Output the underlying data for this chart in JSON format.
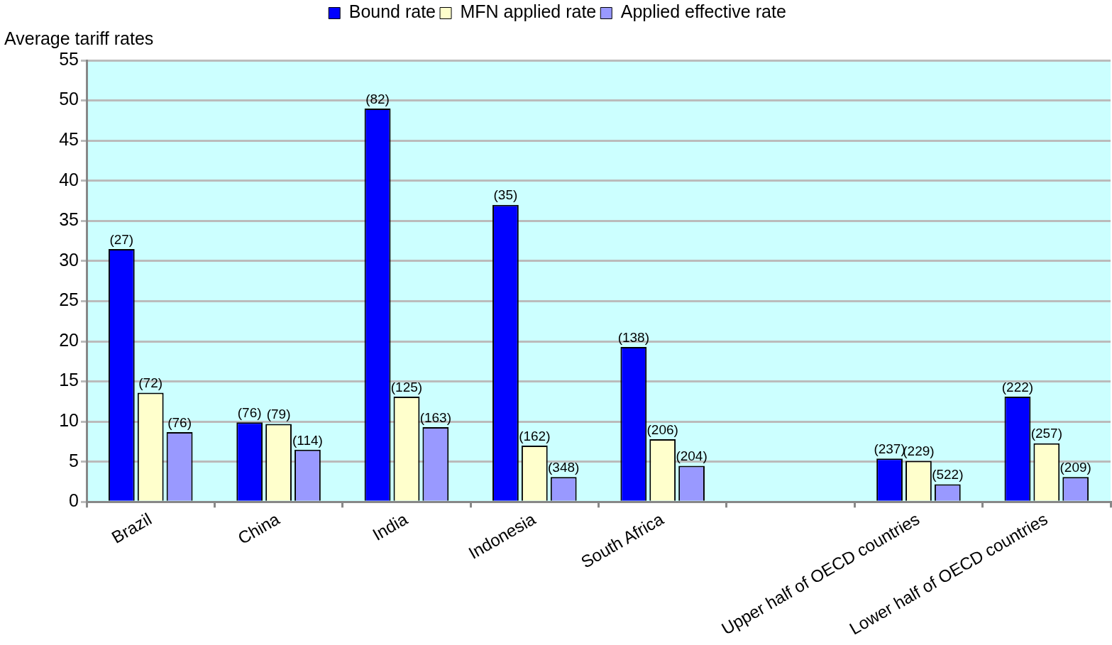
{
  "chart_data": {
    "type": "bar",
    "ylabel": "Average tariff rates",
    "categories": [
      "Brazil",
      "China",
      "India",
      "Indonesia",
      "South Africa",
      null,
      "Upper half of OECD countries",
      "Lower half of OECD countries"
    ],
    "series": [
      {
        "name": "Bound rate",
        "color": "#0000ff",
        "values": [
          31.5,
          9.9,
          49,
          37,
          19.3,
          null,
          5.4,
          13.1
        ]
      },
      {
        "name": "MFN applied rate",
        "color": "#ffffcc",
        "values": [
          13.6,
          9.7,
          13.1,
          7,
          7.8,
          null,
          5.1,
          7.3
        ]
      },
      {
        "name": "Applied effective rate",
        "color": "#9999ff",
        "values": [
          8.7,
          6.5,
          9.3,
          3.1,
          4.5,
          null,
          2.2,
          3.1
        ]
      }
    ],
    "annotations": [
      "(27)",
      "(72)",
      "(76)",
      "(76)",
      "(79)",
      "(114)",
      "(82)",
      "(125)",
      "(163)",
      "(35)",
      "(162)",
      "(348)",
      "(138)",
      "(206)",
      "(204)",
      "(237)",
      "(229)",
      "(522)",
      "(222)",
      "(257)",
      "(209)"
    ],
    "ylim": [
      0,
      55
    ],
    "yticks": [
      0,
      5,
      10,
      15,
      20,
      25,
      30,
      35,
      40,
      45,
      50,
      55
    ],
    "grid": "y",
    "legend": "top"
  }
}
